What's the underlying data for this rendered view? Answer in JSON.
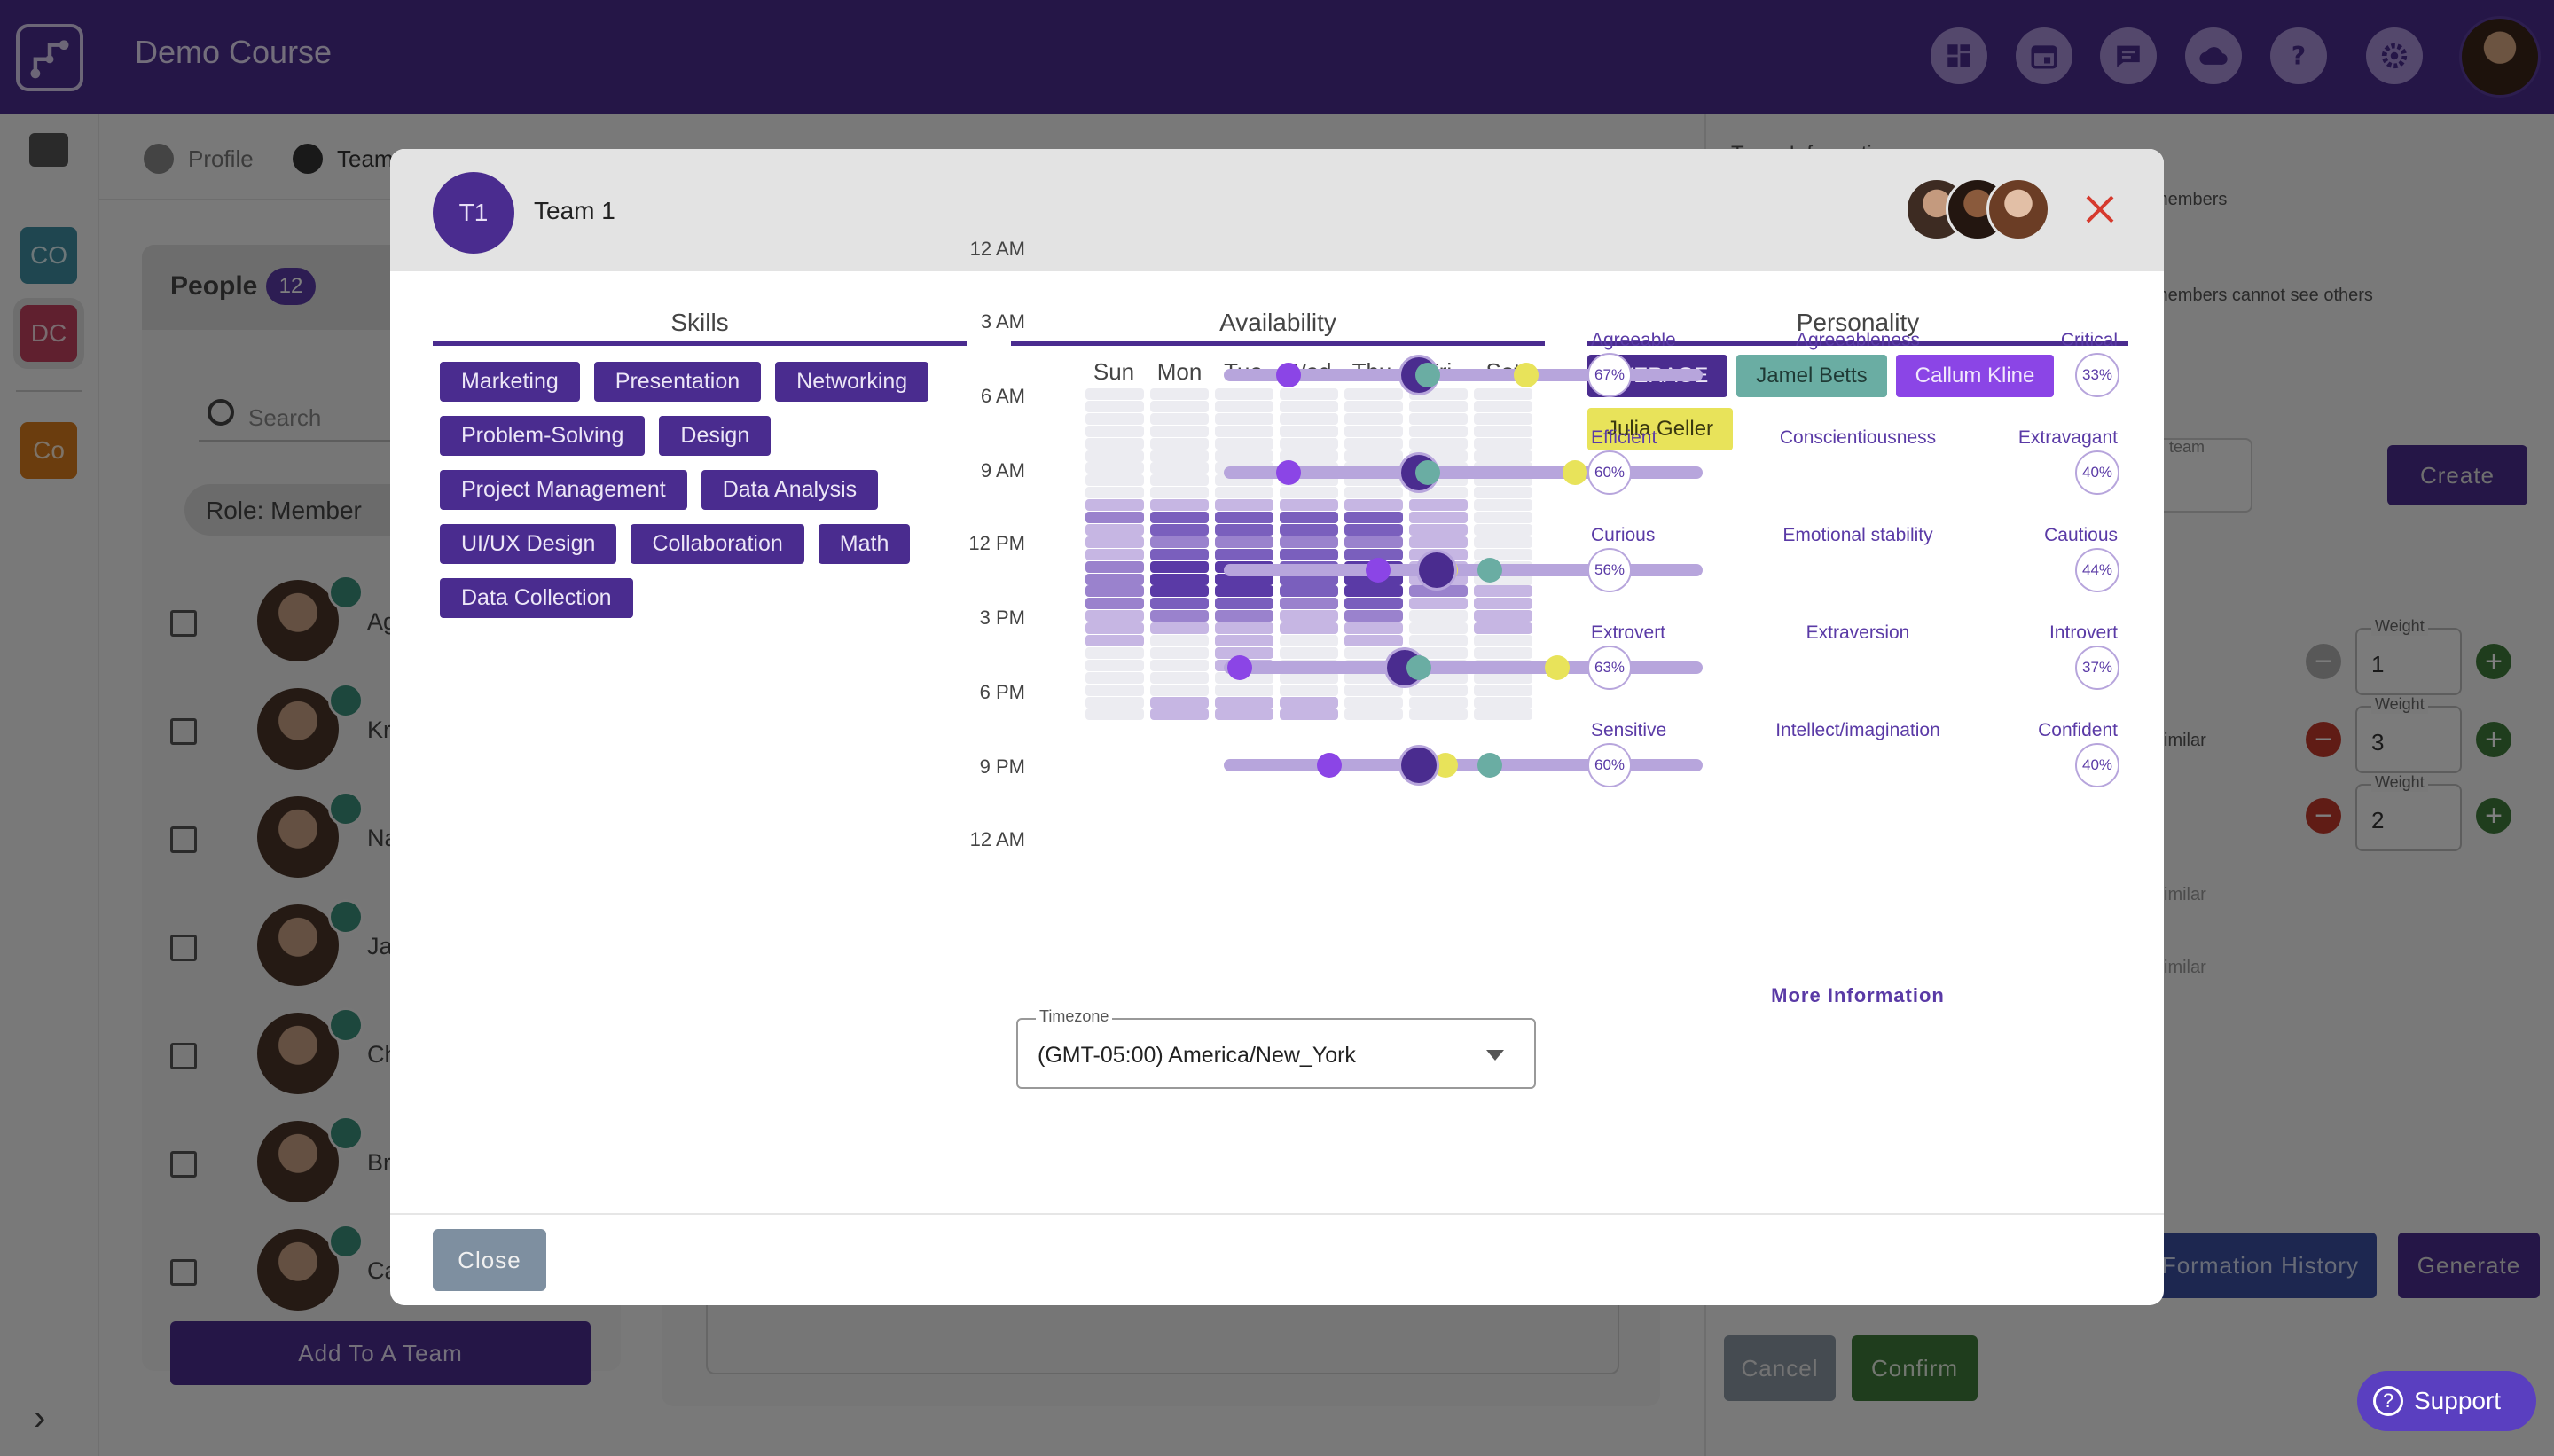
{
  "app": {
    "course_title": "Demo Course",
    "header_icons": [
      "dashboard-icon",
      "calendar-icon",
      "chat-icon",
      "cloud-icon",
      "help-icon",
      "settings-icon"
    ]
  },
  "rail": {
    "items": [
      {
        "label": "CO",
        "bg": "#3f8da0",
        "fg": "#d9eef3"
      },
      {
        "label": "DC",
        "bg": "#c0415f",
        "fg": "#f3d7de"
      },
      {
        "label": "Co",
        "bg": "#d67a1c",
        "fg": "#fbe6cf"
      }
    ]
  },
  "background": {
    "tabs": [
      {
        "label": "Profile"
      },
      {
        "label": "Team"
      }
    ],
    "people": {
      "title": "People",
      "count": "12",
      "search_placeholder": "Search",
      "role_filter": "Role: Member",
      "members": [
        "Agostin",
        "Kristoph",
        "Natash",
        "Jamel B",
        "Chiara",
        "Braxton",
        "Callum"
      ],
      "add_button": "Add To A Team"
    },
    "right": {
      "team_information": "Team Information",
      "members_text": "members",
      "cannot_see": "members cannot see others",
      "team_text": "team",
      "create": "Create",
      "similar": "similar",
      "similar2": "similar",
      "similar3": "similar",
      "weight_label": "Weight",
      "weights": [
        "1",
        "3",
        "2"
      ],
      "history_button": "Formation History",
      "generate_button": "Generate",
      "cancel": "Cancel",
      "confirm": "Confirm",
      "support": "Support"
    }
  },
  "modal": {
    "team_initials": "T1",
    "team_name": "Team 1",
    "close_button": "Close",
    "skills_title": "Skills",
    "skills": [
      "Marketing",
      "Presentation",
      "Networking",
      "Problem-Solving",
      "Design",
      "Project Management",
      "Data Analysis",
      "UI/UX Design",
      "Collaboration",
      "Math",
      "Data Collection"
    ],
    "availability_title": "Availability",
    "days": [
      "Sun",
      "Mon",
      "Tue",
      "Wed",
      "Thu",
      "Fri",
      "Sat"
    ],
    "hour_labels": [
      "12 AM",
      "3 AM",
      "6 AM",
      "9 AM",
      "12 PM",
      "3 PM",
      "6 PM",
      "9 PM",
      "12 AM"
    ],
    "availability_levels": [
      [
        0,
        0,
        0,
        0,
        0,
        0,
        0
      ],
      [
        0,
        0,
        0,
        0,
        0,
        0,
        0
      ],
      [
        0,
        0,
        0,
        0,
        0,
        0,
        0
      ],
      [
        0,
        0,
        0,
        0,
        0,
        0,
        0
      ],
      [
        0,
        0,
        0,
        0,
        0,
        0,
        0
      ],
      [
        0,
        0,
        0,
        0,
        0,
        0,
        0
      ],
      [
        0,
        0,
        0,
        0,
        0,
        0,
        0
      ],
      [
        0,
        0,
        0,
        0,
        0,
        0,
        0
      ],
      [
        0,
        0,
        0,
        0,
        0,
        0,
        0
      ],
      [
        1,
        1,
        1,
        1,
        1,
        1,
        0
      ],
      [
        2,
        3,
        3,
        3,
        3,
        1,
        0
      ],
      [
        1,
        3,
        3,
        3,
        3,
        1,
        0
      ],
      [
        1,
        2,
        2,
        2,
        2,
        1,
        0
      ],
      [
        1,
        3,
        3,
        3,
        3,
        1,
        0
      ],
      [
        2,
        4,
        4,
        3,
        4,
        1,
        0
      ],
      [
        2,
        4,
        4,
        3,
        4,
        1,
        0
      ],
      [
        2,
        4,
        4,
        3,
        4,
        2,
        1
      ],
      [
        2,
        3,
        3,
        2,
        3,
        1,
        1
      ],
      [
        1,
        2,
        2,
        1,
        2,
        0,
        1
      ],
      [
        1,
        1,
        1,
        1,
        1,
        0,
        1
      ],
      [
        1,
        0,
        1,
        0,
        1,
        0,
        0
      ],
      [
        0,
        0,
        1,
        0,
        0,
        0,
        0
      ],
      [
        0,
        0,
        1,
        0,
        0,
        0,
        0
      ],
      [
        0,
        0,
        0,
        0,
        0,
        0,
        0
      ],
      [
        0,
        0,
        0,
        0,
        0,
        0,
        0
      ],
      [
        0,
        1,
        1,
        1,
        0,
        0,
        0
      ],
      [
        0,
        1,
        1,
        1,
        0,
        0,
        0
      ]
    ],
    "timezone_label": "Timezone",
    "timezone_value": "(GMT-05:00) America/New_York",
    "personality_title": "Personality",
    "personality_chips": [
      {
        "label": "AVERAGE",
        "bg": "#4a2c8f",
        "fg": "#ece6f7"
      },
      {
        "label": "Jamel Betts",
        "bg": "#6aada3",
        "fg": "#1f3a35"
      },
      {
        "label": "Callum Kline",
        "bg": "#8b45e6",
        "fg": "#f1e8fc"
      },
      {
        "label": "Julia Geller",
        "bg": "#e8e35a",
        "fg": "#3a3810"
      }
    ],
    "traits": [
      {
        "left": "Agreeable",
        "name": "Agreeableness",
        "right": "Critical",
        "left_pct": "67%",
        "right_pct": "33%",
        "values": {
          "average": 0.4,
          "jamel": 0.42,
          "callum": 0.11,
          "julia": 0.64
        }
      },
      {
        "left": "Efficient",
        "name": "Conscientiousness",
        "right": "Extravagant",
        "left_pct": "60%",
        "right_pct": "40%",
        "values": {
          "average": 0.4,
          "jamel": 0.42,
          "callum": 0.11,
          "julia": 0.75
        }
      },
      {
        "left": "Curious",
        "name": "Emotional stability",
        "right": "Cautious",
        "left_pct": "56%",
        "right_pct": "44%",
        "values": {
          "average": 0.44,
          "jamel": 0.56,
          "callum": 0.31,
          "julia": 0.46
        }
      },
      {
        "left": "Extrovert",
        "name": "Extraversion",
        "right": "Introvert",
        "left_pct": "63%",
        "right_pct": "37%",
        "values": {
          "average": 0.37,
          "jamel": 0.4,
          "callum": 0.0,
          "julia": 0.71
        }
      },
      {
        "left": "Sensitive",
        "name": "Intellect/imagination",
        "right": "Confident",
        "left_pct": "60%",
        "right_pct": "40%",
        "values": {
          "average": 0.4,
          "jamel": 0.56,
          "callum": 0.2,
          "julia": 0.46
        }
      }
    ],
    "more_info": "More Information",
    "colors": {
      "average": "#4a2c8f",
      "jamel": "#6aada3",
      "callum": "#8b45e6",
      "julia": "#e8e35a"
    }
  }
}
